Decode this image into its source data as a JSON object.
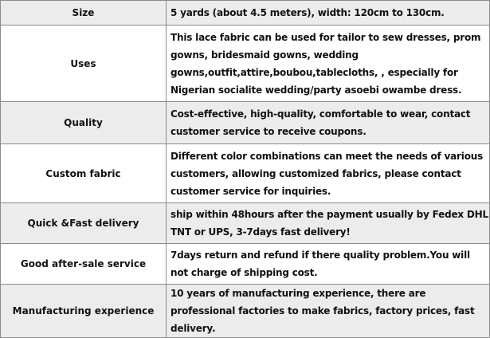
{
  "rows": [
    {
      "label": "Size",
      "lines": [
        "5 yards (about 4.5 meters), width: 120cm to 130cm."
      ],
      "shaded": true
    },
    {
      "label": "Uses",
      "lines": [
        "This lace fabric can be used for tailor to sew dresses, prom",
        "gowns, bridesmaid gowns, wedding",
        "gowns,outfit,attire,boubou,tablecloths, , especially for",
        "Nigerian socialite wedding/party asoebi owambe dress."
      ],
      "shaded": false
    },
    {
      "label": "Quality",
      "lines": [
        "Cost-effective, high-quality, comfortable to wear, contact",
        "customer service to receive coupons."
      ],
      "shaded": true
    },
    {
      "label": "Custom fabric",
      "lines": [
        "Different color combinations can meet the needs of various",
        "customers, allowing customized fabrics, please contact",
        "customer service for inquiries."
      ],
      "shaded": false
    },
    {
      "label": "Quick &Fast delivery",
      "lines": [
        "ship within 48hours after the payment usually by Fedex DHL",
        "TNT or UPS, 3-7days fast delivery!"
      ],
      "shaded": true
    },
    {
      "label": "Good after-sale service",
      "lines": [
        "7days return and refund if there quality problem.You will",
        "not charge of shipping cost."
      ],
      "shaded": false
    },
    {
      "label": "Manufacturing experience",
      "lines": [
        "10 years of manufacturing experience, there are",
        "professional factories to make fabrics, factory prices, fast",
        "delivery."
      ],
      "shaded": true
    }
  ],
  "colors": {
    "shade": "#ececec",
    "border": "#8a8a8a"
  }
}
